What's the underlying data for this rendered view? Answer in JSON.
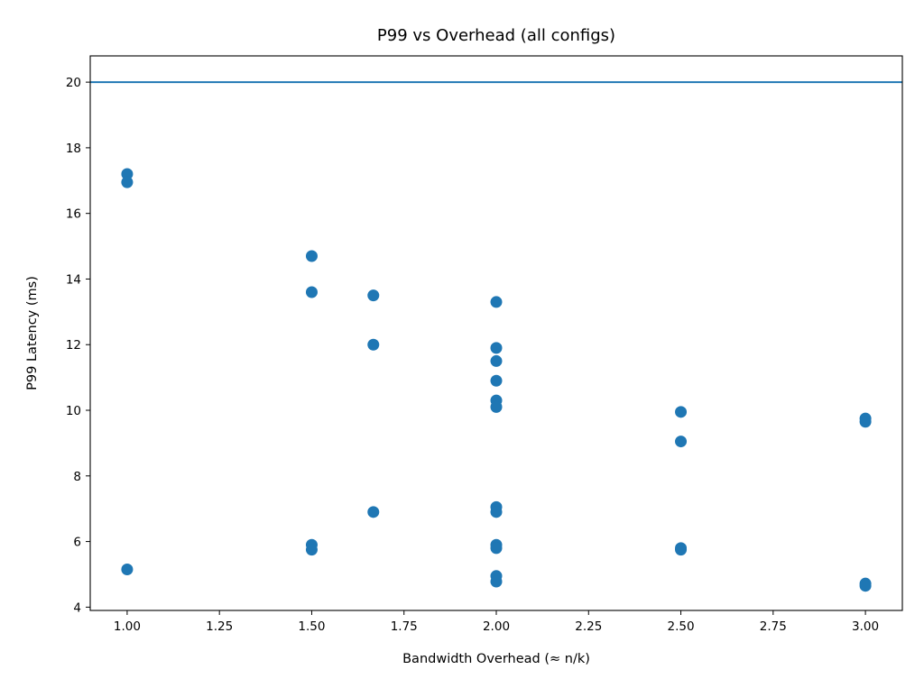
{
  "chart_data": {
    "type": "scatter",
    "title": "P99 vs Overhead (all configs)",
    "xlabel": "Bandwidth Overhead (≈ n/k)",
    "ylabel": "P99 Latency (ms)",
    "xlim": [
      0.9,
      3.1
    ],
    "ylim": [
      3.9,
      20.8
    ],
    "xticks": [
      1.0,
      1.25,
      1.5,
      1.75,
      2.0,
      2.25,
      2.5,
      2.75,
      3.0
    ],
    "xtick_labels": [
      "1.00",
      "1.25",
      "1.50",
      "1.75",
      "2.00",
      "2.25",
      "2.50",
      "2.75",
      "3.00"
    ],
    "yticks": [
      4,
      6,
      8,
      10,
      12,
      14,
      16,
      18,
      20
    ],
    "ytick_labels": [
      "4",
      "6",
      "8",
      "10",
      "12",
      "14",
      "16",
      "18",
      "20"
    ],
    "grid": false,
    "legend": false,
    "reference_line": {
      "orientation": "horizontal",
      "y": 20,
      "color": "#1f77b4"
    },
    "marker_color": "#1f77b4",
    "points": [
      {
        "x": 1.0,
        "y": 17.2
      },
      {
        "x": 1.0,
        "y": 16.95
      },
      {
        "x": 1.0,
        "y": 5.15
      },
      {
        "x": 1.5,
        "y": 14.7
      },
      {
        "x": 1.5,
        "y": 13.6
      },
      {
        "x": 1.5,
        "y": 5.9
      },
      {
        "x": 1.5,
        "y": 5.75
      },
      {
        "x": 1.667,
        "y": 13.5
      },
      {
        "x": 1.667,
        "y": 12.0
      },
      {
        "x": 1.667,
        "y": 6.9
      },
      {
        "x": 2.0,
        "y": 13.3
      },
      {
        "x": 2.0,
        "y": 11.9
      },
      {
        "x": 2.0,
        "y": 11.5
      },
      {
        "x": 2.0,
        "y": 10.9
      },
      {
        "x": 2.0,
        "y": 10.3
      },
      {
        "x": 2.0,
        "y": 10.1
      },
      {
        "x": 2.0,
        "y": 7.05
      },
      {
        "x": 2.0,
        "y": 6.9
      },
      {
        "x": 2.0,
        "y": 5.9
      },
      {
        "x": 2.0,
        "y": 5.8
      },
      {
        "x": 2.0,
        "y": 4.95
      },
      {
        "x": 2.0,
        "y": 4.78
      },
      {
        "x": 2.5,
        "y": 9.95
      },
      {
        "x": 2.5,
        "y": 9.05
      },
      {
        "x": 2.5,
        "y": 5.8
      },
      {
        "x": 2.5,
        "y": 5.75
      },
      {
        "x": 3.0,
        "y": 9.75
      },
      {
        "x": 3.0,
        "y": 9.65
      },
      {
        "x": 3.0,
        "y": 4.72
      },
      {
        "x": 3.0,
        "y": 4.65
      }
    ]
  }
}
